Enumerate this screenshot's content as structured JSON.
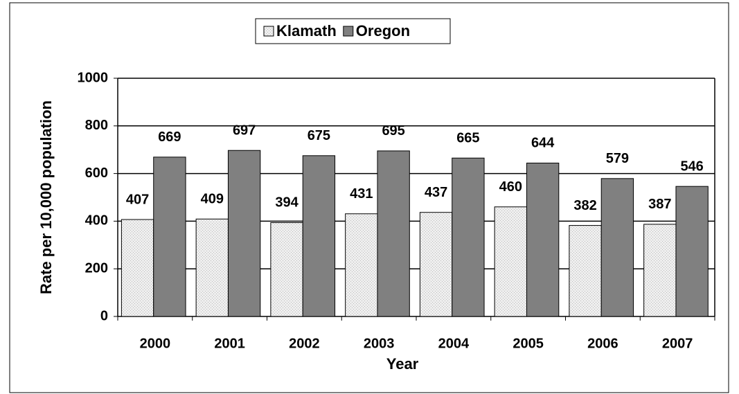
{
  "chart_data": {
    "type": "bar",
    "categories": [
      "2000",
      "2001",
      "2002",
      "2003",
      "2004",
      "2005",
      "2006",
      "2007"
    ],
    "series": [
      {
        "name": "Klamath",
        "color": "#e6e6e6",
        "values": [
          407,
          409,
          394,
          431,
          437,
          460,
          382,
          387
        ]
      },
      {
        "name": "Oregon",
        "color": "#808080",
        "values": [
          669,
          697,
          675,
          695,
          665,
          644,
          579,
          546
        ]
      }
    ],
    "x_label": "Year",
    "y_label": "Rate per 10,000 population",
    "ylim": [
      0,
      1000
    ],
    "yticks": [
      0,
      200,
      400,
      600,
      800,
      1000
    ],
    "grid": true,
    "legend": "top"
  }
}
